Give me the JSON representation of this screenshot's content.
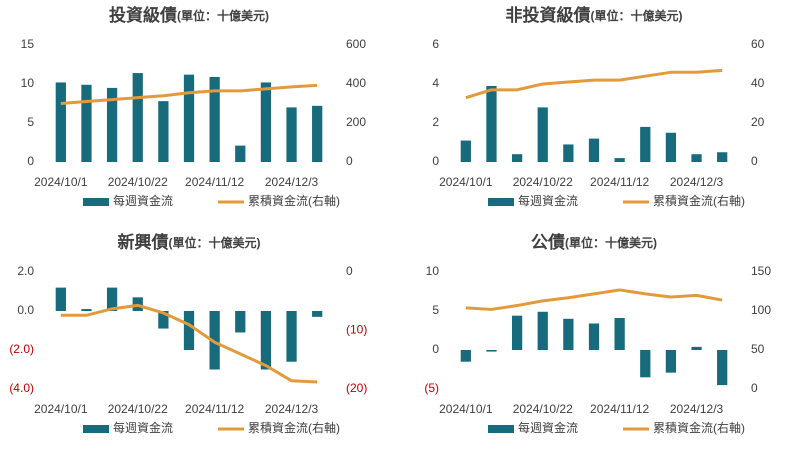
{
  "chart_data": [
    {
      "type": "combo",
      "title": "投資級債",
      "subtitle": "(單位：十億美元)",
      "categories": [
        "2024/10/1",
        null,
        null,
        "2024/10/22",
        null,
        null,
        "2024/11/12",
        null,
        null,
        "2024/12/3",
        null
      ],
      "series": [
        {
          "name": "每週資金流",
          "type": "bar",
          "color": "#176b7d",
          "values": [
            10.2,
            9.9,
            9.5,
            11.4,
            7.8,
            11.2,
            10.9,
            2.1,
            10.2,
            7.0,
            7.2
          ]
        },
        {
          "name": "累積資金流(右軸)",
          "type": "line",
          "axis": "y2",
          "color": "#e39a3b",
          "values": [
            300,
            310,
            320,
            330,
            340,
            355,
            365,
            365,
            375,
            385,
            393
          ]
        }
      ],
      "ylim": [
        0,
        15
      ],
      "yticks": [
        0,
        5,
        10,
        15
      ],
      "y2lim": [
        0,
        600
      ],
      "y2ticks": [
        0,
        200,
        400,
        600
      ]
    },
    {
      "type": "combo",
      "title": "非投資級債",
      "subtitle": "(單位：十億美元)",
      "categories": [
        "2024/10/1",
        null,
        null,
        "2024/10/22",
        null,
        null,
        "2024/11/12",
        null,
        null,
        "2024/12/3",
        null
      ],
      "series": [
        {
          "name": "每週資金流",
          "type": "bar",
          "color": "#176b7d",
          "values": [
            1.1,
            3.9,
            0.4,
            2.8,
            0.9,
            1.2,
            0.2,
            1.8,
            1.5,
            0.4,
            0.5
          ]
        },
        {
          "name": "累積資金流(右軸)",
          "type": "line",
          "axis": "y2",
          "color": "#e39a3b",
          "values": [
            33,
            37,
            37,
            40,
            41,
            42,
            42,
            44,
            46,
            46,
            47
          ]
        }
      ],
      "ylim": [
        0,
        6
      ],
      "yticks": [
        0,
        2,
        4,
        6
      ],
      "y2lim": [
        0,
        60
      ],
      "y2ticks": [
        0,
        20,
        40,
        60
      ]
    },
    {
      "type": "combo",
      "title": "新興債",
      "subtitle": "(單位：十億美元)",
      "categories": [
        "2024/10/1",
        null,
        null,
        "2024/10/22",
        null,
        null,
        "2024/11/12",
        null,
        null,
        "2024/12/3",
        null
      ],
      "series": [
        {
          "name": "每週資金流",
          "type": "bar",
          "color": "#176b7d",
          "values": [
            1.2,
            0.1,
            1.2,
            0.7,
            -0.9,
            -2.0,
            -3.0,
            -1.1,
            -3.0,
            -2.6,
            -0.3
          ]
        },
        {
          "name": "累積資金流(右軸)",
          "type": "line",
          "axis": "y2",
          "color": "#e39a3b",
          "values": [
            -7.4,
            -7.4,
            -6.3,
            -5.7,
            -7.0,
            -9.0,
            -12.0,
            -14.0,
            -16.0,
            -18.6,
            -18.8
          ]
        }
      ],
      "ylim": [
        -4,
        2
      ],
      "yticks": [
        {
          "value": 2,
          "label": "2.0"
        },
        {
          "value": 0,
          "label": "0.0"
        },
        {
          "value": -2,
          "label": "(2.0)"
        },
        {
          "value": -4,
          "label": "(4.0)"
        }
      ],
      "y2lim": [
        -20,
        0
      ],
      "y2ticks": [
        0,
        {
          "value": -10,
          "label": "(10)"
        },
        {
          "value": -20,
          "label": "(20)"
        }
      ],
      "negative_tick_color": "#c00000"
    },
    {
      "type": "combo",
      "title": "公債",
      "subtitle": "(單位：十億美元)",
      "categories": [
        "2024/10/1",
        null,
        null,
        "2024/10/22",
        null,
        null,
        "2024/11/12",
        null,
        null,
        "2024/12/3",
        null
      ],
      "series": [
        {
          "name": "每週資金流",
          "type": "bar",
          "color": "#176b7d",
          "values": [
            -1.5,
            -0.2,
            4.4,
            4.9,
            4.0,
            3.4,
            4.1,
            -3.5,
            -2.9,
            0.4,
            -4.5
          ]
        },
        {
          "name": "累積資金流(右軸)",
          "type": "line",
          "axis": "y2",
          "color": "#e39a3b",
          "values": [
            104,
            102,
            107,
            113,
            117,
            122,
            127,
            122,
            118,
            120,
            114
          ]
        }
      ],
      "ylim": [
        -5,
        10
      ],
      "yticks": [
        10,
        5,
        0,
        {
          "value": -5,
          "label": "(5)"
        }
      ],
      "y2lim": [
        0,
        150
      ],
      "y2ticks": [
        0,
        50,
        100,
        150
      ],
      "negative_tick_color": "#c00000"
    }
  ]
}
